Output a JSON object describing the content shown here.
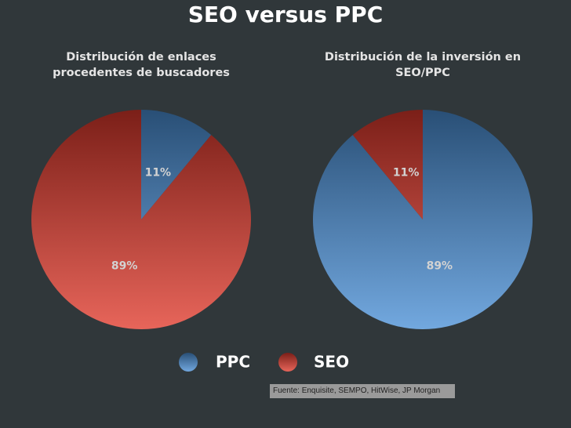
{
  "title": "SEO versus PPC",
  "source": "Fuente: Enquisite, SEMPO, HitWise, JP Morgan",
  "chart_data": [
    {
      "type": "pie",
      "title": "Distribución de enlaces procedentes de buscadores",
      "categories": [
        "PPC",
        "SEO"
      ],
      "values": [
        11,
        89
      ],
      "value_labels": [
        "11%",
        "89%"
      ],
      "colors": [
        "#4a8fd6",
        "#e0392b"
      ],
      "legend": "bottom"
    },
    {
      "type": "pie",
      "title": "Distribución de la inversión en SEO/PPC",
      "categories": [
        "PPC",
        "SEO"
      ],
      "values": [
        89,
        11
      ],
      "value_labels": [
        "89%",
        "11%"
      ],
      "colors": [
        "#4a8fd6",
        "#e0392b"
      ]
    }
  ]
}
